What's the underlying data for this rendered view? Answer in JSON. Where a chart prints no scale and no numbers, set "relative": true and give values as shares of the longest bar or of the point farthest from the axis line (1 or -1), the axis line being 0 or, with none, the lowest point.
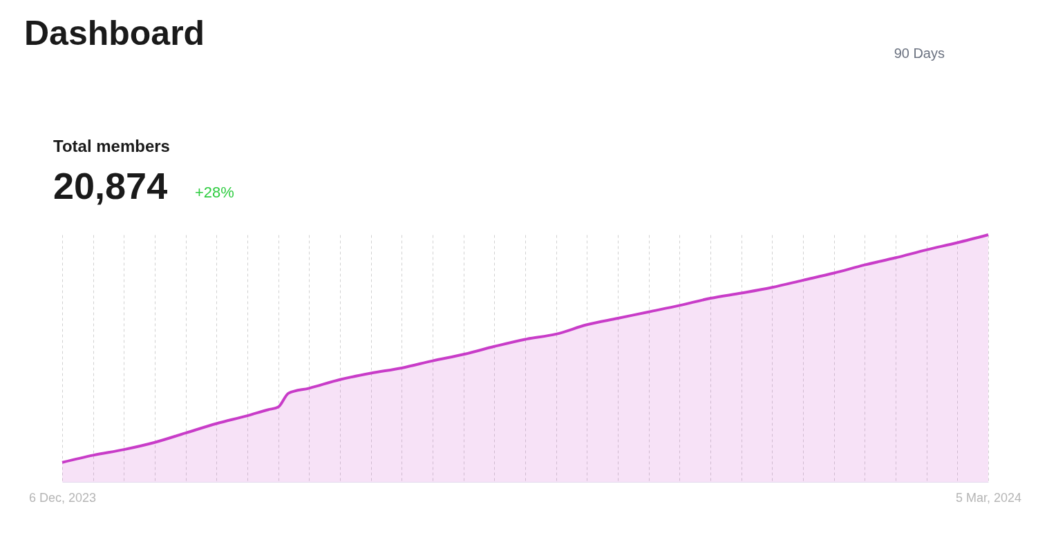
{
  "chart_data": {
    "type": "area",
    "title": "Dashboard",
    "subtitle": "Total members",
    "annotations": [
      "20,874",
      "+28%",
      "90 Days"
    ],
    "relative": true,
    "x": [
      "2023-12-06",
      "2023-12-09",
      "2023-12-12",
      "2023-12-15",
      "2023-12-18",
      "2023-12-21",
      "2023-12-24",
      "2023-12-26",
      "2023-12-27",
      "2023-12-28",
      "2023-12-30",
      "2024-01-02",
      "2024-01-05",
      "2024-01-08",
      "2024-01-11",
      "2024-01-14",
      "2024-01-17",
      "2024-01-20",
      "2024-01-23",
      "2024-01-26",
      "2024-01-29",
      "2024-02-01",
      "2024-02-04",
      "2024-02-07",
      "2024-02-10",
      "2024-02-13",
      "2024-02-16",
      "2024-02-19",
      "2024-02-22",
      "2024-02-25",
      "2024-02-28",
      "2024-03-02",
      "2024-03-05"
    ],
    "series": [
      {
        "color": "#c83cc8",
        "values": [
          0.079,
          0.108,
          0.131,
          0.16,
          0.198,
          0.236,
          0.268,
          0.292,
          0.303,
          0.359,
          0.379,
          0.414,
          0.44,
          0.461,
          0.49,
          0.516,
          0.548,
          0.577,
          0.598,
          0.636,
          0.662,
          0.688,
          0.714,
          0.743,
          0.764,
          0.787,
          0.816,
          0.845,
          0.878,
          0.907,
          0.939,
          0.968,
          1
        ]
      }
    ],
    "xlim": [
      "2023-12-06",
      "2024-03-05"
    ],
    "xticks": [
      {
        "value": "2023-12-06",
        "label": "6 Dec, 2023"
      },
      {
        "value": "2023-12-09",
        "label": null
      },
      {
        "value": "2023-12-12",
        "label": null
      },
      {
        "value": "2023-12-15",
        "label": null
      },
      {
        "value": "2023-12-18",
        "label": null
      },
      {
        "value": "2023-12-21",
        "label": null
      },
      {
        "value": "2023-12-24",
        "label": null
      },
      {
        "value": "2023-12-27",
        "label": null
      },
      {
        "value": "2023-12-30",
        "label": null
      },
      {
        "value": "2024-01-02",
        "label": null
      },
      {
        "value": "2024-01-05",
        "label": null
      },
      {
        "value": "2024-01-08",
        "label": null
      },
      {
        "value": "2024-01-11",
        "label": null
      },
      {
        "value": "2024-01-14",
        "label": null
      },
      {
        "value": "2024-01-17",
        "label": null
      },
      {
        "value": "2024-01-20",
        "label": null
      },
      {
        "value": "2024-01-23",
        "label": null
      },
      {
        "value": "2024-01-26",
        "label": null
      },
      {
        "value": "2024-01-29",
        "label": null
      },
      {
        "value": "2024-02-01",
        "label": null
      },
      {
        "value": "2024-02-04",
        "label": null
      },
      {
        "value": "2024-02-07",
        "label": null
      },
      {
        "value": "2024-02-10",
        "label": null
      },
      {
        "value": "2024-02-13",
        "label": null
      },
      {
        "value": "2024-02-16",
        "label": null
      },
      {
        "value": "2024-02-19",
        "label": null
      },
      {
        "value": "2024-02-22",
        "label": null
      },
      {
        "value": "2024-02-25",
        "label": null
      },
      {
        "value": "2024-02-28",
        "label": null
      },
      {
        "value": "2024-03-02",
        "label": null
      },
      {
        "value": "2024-03-05",
        "label": "5 Mar, 2024"
      }
    ],
    "grid": "x",
    "line_style": "solid"
  }
}
